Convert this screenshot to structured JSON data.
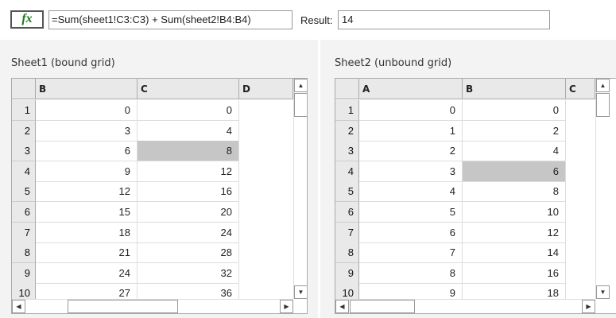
{
  "formula_bar": {
    "fx_label": "fx",
    "formula": "=Sum(sheet1!C3:C3) + Sum(sheet2!B4:B4)",
    "result_label": "Result:",
    "result": "14"
  },
  "sheet1": {
    "title": "Sheet1 (bound grid)",
    "columns": [
      "B",
      "C",
      "D"
    ],
    "rows": [
      [
        "1",
        "0",
        "0"
      ],
      [
        "2",
        "3",
        "4"
      ],
      [
        "3",
        "6",
        "8"
      ],
      [
        "4",
        "9",
        "12"
      ],
      [
        "5",
        "12",
        "16"
      ],
      [
        "6",
        "15",
        "20"
      ],
      [
        "7",
        "18",
        "24"
      ],
      [
        "8",
        "21",
        "28"
      ],
      [
        "9",
        "24",
        "32"
      ],
      [
        "10",
        "27",
        "36"
      ]
    ],
    "selected_cell": "C3"
  },
  "sheet2": {
    "title": "Sheet2 (unbound grid)",
    "columns": [
      "A",
      "B",
      "C"
    ],
    "rows": [
      [
        "1",
        "0",
        "0"
      ],
      [
        "2",
        "1",
        "2"
      ],
      [
        "3",
        "2",
        "4"
      ],
      [
        "4",
        "3",
        "6"
      ],
      [
        "5",
        "4",
        "8"
      ],
      [
        "6",
        "5",
        "10"
      ],
      [
        "7",
        "6",
        "12"
      ],
      [
        "8",
        "7",
        "14"
      ],
      [
        "9",
        "8",
        "16"
      ],
      [
        "10",
        "9",
        "18"
      ]
    ],
    "selected_cell": "B4"
  },
  "icons": {
    "up": "▲",
    "down": "▼",
    "left": "◀",
    "right": "▶"
  }
}
